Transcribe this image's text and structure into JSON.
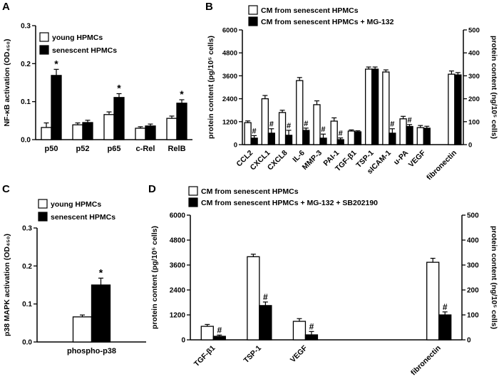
{
  "figure": {
    "description": "Four-panel bar chart figure on senescent HPMC secretome",
    "significance_symbols": {
      "star": "*",
      "hash": "#"
    },
    "colors": {
      "bar_open": "#ffffff",
      "bar_filled": "#000000",
      "axis": "#000000",
      "background": "#ffffff"
    }
  },
  "chart_data": [
    {
      "panel": "A",
      "type": "bar",
      "title": "",
      "ylabel": "NF-κB activation (OD₄₅₀)",
      "ylim": [
        0,
        0.3
      ],
      "ytick_values": [
        0,
        0.1,
        0.2,
        0.3
      ],
      "ytick_labels": [
        "0.0",
        "0.1",
        "0.2",
        "0.3"
      ],
      "grid": false,
      "legend_position": "top-left-inside",
      "categories": [
        {
          "label": "p50",
          "axis": "left"
        },
        {
          "label": "p52",
          "axis": "left"
        },
        {
          "label": "p65",
          "axis": "left"
        },
        {
          "label": "c-Rel",
          "axis": "left"
        },
        {
          "label": "RelB",
          "axis": "left"
        }
      ],
      "series": [
        {
          "name": "young HPMCs",
          "fill": "#ffffff",
          "values": [
            0.032,
            0.039,
            0.066,
            0.03,
            0.056
          ],
          "errors": [
            0.012,
            0.005,
            0.007,
            0.004,
            0.006
          ],
          "annotations": [
            "",
            "",
            "",
            "",
            ""
          ]
        },
        {
          "name": "senescent HPMCs",
          "fill": "#000000",
          "values": [
            0.169,
            0.045,
            0.111,
            0.036,
            0.096
          ],
          "errors": [
            0.016,
            0.006,
            0.01,
            0.005,
            0.009
          ],
          "annotations": [
            "*",
            "",
            "*",
            "",
            "*"
          ]
        }
      ]
    },
    {
      "panel": "B",
      "type": "bar",
      "title": "",
      "ylabel": "protein content (pg/10⁵ cells)",
      "ylabel_right": "protein content (ng/10⁵ cells)",
      "ylim": [
        0,
        6000
      ],
      "ytick_values": [
        0,
        1200,
        2400,
        3600,
        4800,
        6000
      ],
      "ytick_labels": [
        "0",
        "1200",
        "2400",
        "3600",
        "4800",
        "6000"
      ],
      "ylim_right": [
        0,
        500
      ],
      "ytick_values_right": [
        0,
        100,
        200,
        300,
        400,
        500
      ],
      "ytick_labels_right": [
        "0",
        "100",
        "200",
        "300",
        "400",
        "500"
      ],
      "grid": false,
      "legend_position": "top-left-inside",
      "categories": [
        {
          "label": "CCL2",
          "axis": "left"
        },
        {
          "label": "CXCL1",
          "axis": "left"
        },
        {
          "label": "CXCL8",
          "axis": "left"
        },
        {
          "label": "IL-6",
          "axis": "left"
        },
        {
          "label": "MMP-3",
          "axis": "left"
        },
        {
          "label": "PAI-1",
          "axis": "left"
        },
        {
          "label": "TGF-β1",
          "axis": "left"
        },
        {
          "label": "TSP-1",
          "axis": "left"
        },
        {
          "label": "sICAM-1",
          "axis": "left"
        },
        {
          "label": "u-PA",
          "axis": "left"
        },
        {
          "label": "VEGF",
          "axis": "left"
        },
        {
          "label": "fibronectin",
          "axis": "right"
        }
      ],
      "series": [
        {
          "name": "CM from senescent HPMCs",
          "fill": "#ffffff",
          "values": [
            1150,
            2400,
            1680,
            3350,
            2090,
            1230,
            710,
            3950,
            3800,
            1350,
            890,
            307
          ],
          "errors": [
            90,
            170,
            120,
            160,
            200,
            170,
            60,
            110,
            110,
            130,
            110,
            14
          ],
          "annotations": [
            "",
            "",
            "",
            "",
            "",
            "",
            "",
            "",
            "",
            "",
            "",
            ""
          ]
        },
        {
          "name": "CM from senescent HPMCs + MG-132",
          "fill": "#000000",
          "values": [
            340,
            600,
            490,
            745,
            340,
            260,
            670,
            3950,
            600,
            950,
            860,
            304
          ],
          "errors": [
            130,
            230,
            260,
            120,
            210,
            90,
            55,
            110,
            230,
            100,
            100,
            10
          ],
          "annotations": [
            "#",
            "#",
            "#",
            "#",
            "#",
            "#",
            "",
            "",
            "#",
            "#",
            "",
            ""
          ]
        }
      ]
    },
    {
      "panel": "C",
      "type": "bar",
      "title": "",
      "ylabel": "p38 MAPK activation (OD₄₅₀)",
      "ylim": [
        0,
        0.3
      ],
      "ytick_values": [
        0,
        0.1,
        0.2,
        0.3
      ],
      "ytick_labels": [
        "0.0",
        "0.1",
        "0.2",
        "0.3"
      ],
      "grid": false,
      "legend_position": "top-left-inside",
      "categories": [
        {
          "label": "phospho-p38",
          "axis": "left"
        }
      ],
      "series": [
        {
          "name": "young HPMCs",
          "fill": "#ffffff",
          "values": [
            0.066
          ],
          "errors": [
            0.005
          ],
          "annotations": [
            ""
          ]
        },
        {
          "name": "senescent HPMCs",
          "fill": "#000000",
          "values": [
            0.15
          ],
          "errors": [
            0.018
          ],
          "annotations": [
            "*"
          ]
        }
      ]
    },
    {
      "panel": "D",
      "type": "bar",
      "title": "",
      "ylabel": "protein content (pg/10⁵ cells)",
      "ylabel_right": "protein content (ng/10⁵ cells)",
      "ylim": [
        0,
        6000
      ],
      "ytick_values": [
        0,
        1200,
        2400,
        3600,
        4800,
        6000
      ],
      "ytick_labels": [
        "0",
        "1200",
        "2400",
        "3600",
        "4800",
        "6000"
      ],
      "ylim_right": [
        0,
        500
      ],
      "ytick_values_right": [
        0,
        100,
        200,
        300,
        400,
        500
      ],
      "ytick_labels_right": [
        "0",
        "100",
        "200",
        "300",
        "400",
        "500"
      ],
      "grid": false,
      "legend_position": "top-left-inside",
      "categories": [
        {
          "label": "TGF-β1",
          "axis": "left"
        },
        {
          "label": "TSP-1",
          "axis": "left"
        },
        {
          "label": "VEGF",
          "axis": "left"
        },
        {
          "label": "fibronectin",
          "axis": "right"
        }
      ],
      "series": [
        {
          "name": "CM from senescent HPMCs",
          "fill": "#ffffff",
          "values": [
            650,
            4000,
            890,
            311
          ],
          "errors": [
            90,
            120,
            130,
            16
          ],
          "annotations": [
            "",
            "",
            "",
            ""
          ]
        },
        {
          "name": "CM from senescent HPMCs + MG-132 + SB202190",
          "fill": "#000000",
          "values": [
            170,
            1650,
            240,
            100
          ],
          "errors": [
            60,
            170,
            160,
            12
          ],
          "annotations": [
            "#",
            "#",
            "#",
            "#"
          ]
        }
      ]
    }
  ]
}
